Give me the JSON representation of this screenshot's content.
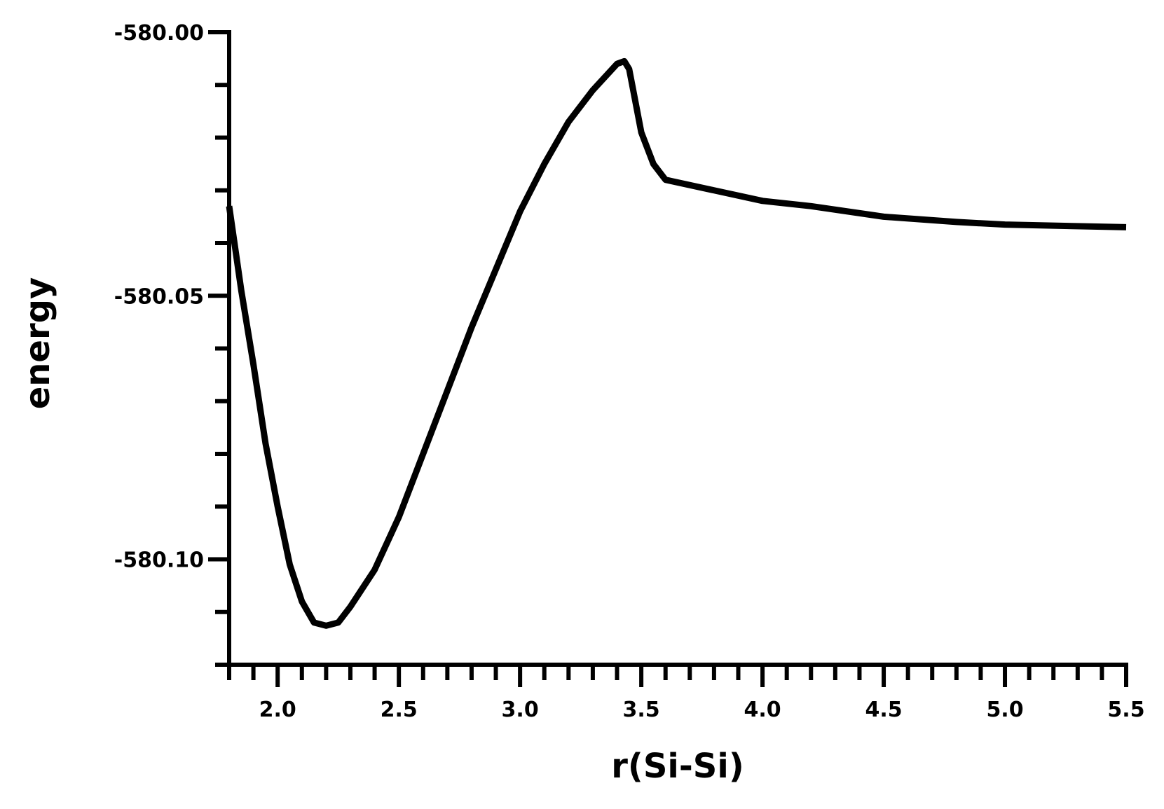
{
  "chart_data": {
    "type": "line",
    "xlabel": "r(Si-Si)",
    "ylabel": "energy",
    "xlim": [
      1.8,
      5.5
    ],
    "ylim": [
      -580.12,
      -580.0
    ],
    "xticks": [
      {
        "value": 2.0,
        "label": "2.0"
      },
      {
        "value": 2.5,
        "label": "2.5"
      },
      {
        "value": 3.0,
        "label": "3.0"
      },
      {
        "value": 3.5,
        "label": "3.5"
      },
      {
        "value": 4.0,
        "label": "4.0"
      },
      {
        "value": 4.5,
        "label": "4.5"
      },
      {
        "value": 5.0,
        "label": "5.0"
      },
      {
        "value": 5.5,
        "label": "5.5"
      }
    ],
    "xminorticks": [
      1.8,
      1.9,
      2.1,
      2.2,
      2.3,
      2.4,
      2.6,
      2.7,
      2.8,
      2.9,
      3.1,
      3.2,
      3.3,
      3.4,
      3.6,
      3.7,
      3.8,
      3.9,
      4.1,
      4.2,
      4.3,
      4.4,
      4.6,
      4.7,
      4.8,
      4.9,
      5.1,
      5.2,
      5.3,
      5.4
    ],
    "yticks": [
      {
        "value": -580.0,
        "label": "-580.00"
      },
      {
        "value": -580.05,
        "label": "-580.05"
      },
      {
        "value": -580.1,
        "label": "-580.10"
      }
    ],
    "yminorticks": [
      -580.01,
      -580.02,
      -580.03,
      -580.04,
      -580.06,
      -580.07,
      -580.08,
      -580.09,
      -580.11,
      -580.12
    ],
    "grid": false,
    "series": [
      {
        "color": "#000000",
        "x": [
          1.8,
          1.85,
          1.9,
          1.95,
          2.0,
          2.05,
          2.1,
          2.15,
          2.2,
          2.25,
          2.3,
          2.4,
          2.5,
          2.6,
          2.7,
          2.8,
          2.9,
          3.0,
          3.1,
          3.2,
          3.3,
          3.4,
          3.43,
          3.45,
          3.5,
          3.55,
          3.6,
          3.8,
          4.0,
          4.2,
          4.5,
          4.8,
          5.0,
          5.5
        ],
        "values": [
          -580.033,
          -580.049,
          -580.063,
          -580.078,
          -580.09,
          -580.101,
          -580.108,
          -580.112,
          -580.1126,
          -580.112,
          -580.109,
          -580.102,
          -580.092,
          -580.08,
          -580.068,
          -580.056,
          -580.045,
          -580.034,
          -580.025,
          -580.017,
          -580.011,
          -580.006,
          -580.0055,
          -580.007,
          -580.019,
          -580.025,
          -580.028,
          -580.03,
          -580.032,
          -580.033,
          -580.035,
          -580.036,
          -580.0365,
          -580.037
        ]
      }
    ]
  }
}
